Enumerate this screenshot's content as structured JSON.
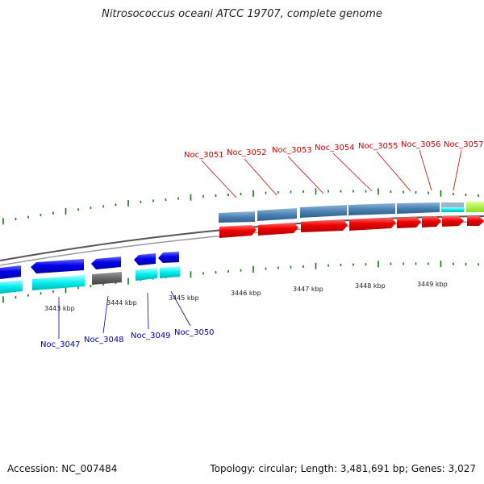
{
  "title": "Nitrosococcus oceani ATCC 19707, complete genome",
  "accession": "Accession: NC_007484",
  "summary": "Topology: circular; Length: 3,481,691 bp; Genes: 3,027",
  "colors": {
    "forward_gene": "#ee0000",
    "reverse_gene": "#0000ee",
    "forward_cds": "#4a82b4",
    "reverse_cds": "#00eeee",
    "grey_feature": "#666666",
    "skew_tick": "#117711",
    "label_forward": "#cc0000",
    "label_reverse": "#0000aa"
  },
  "kbp_labels": [
    "3443 kbp",
    "3444 kbp",
    "3445 kbp",
    "3446 kbp",
    "3447 kbp",
    "3448 kbp",
    "3449 kbp"
  ],
  "top_labels": [
    "Noc_3051",
    "Noc_3052",
    "Noc_3053",
    "Noc_3054",
    "Noc_3055",
    "Noc_3056",
    "Noc_3057"
  ],
  "bottom_labels": [
    "Noc_3047",
    "Noc_3048",
    "Noc_3049",
    "Noc_3050"
  ]
}
